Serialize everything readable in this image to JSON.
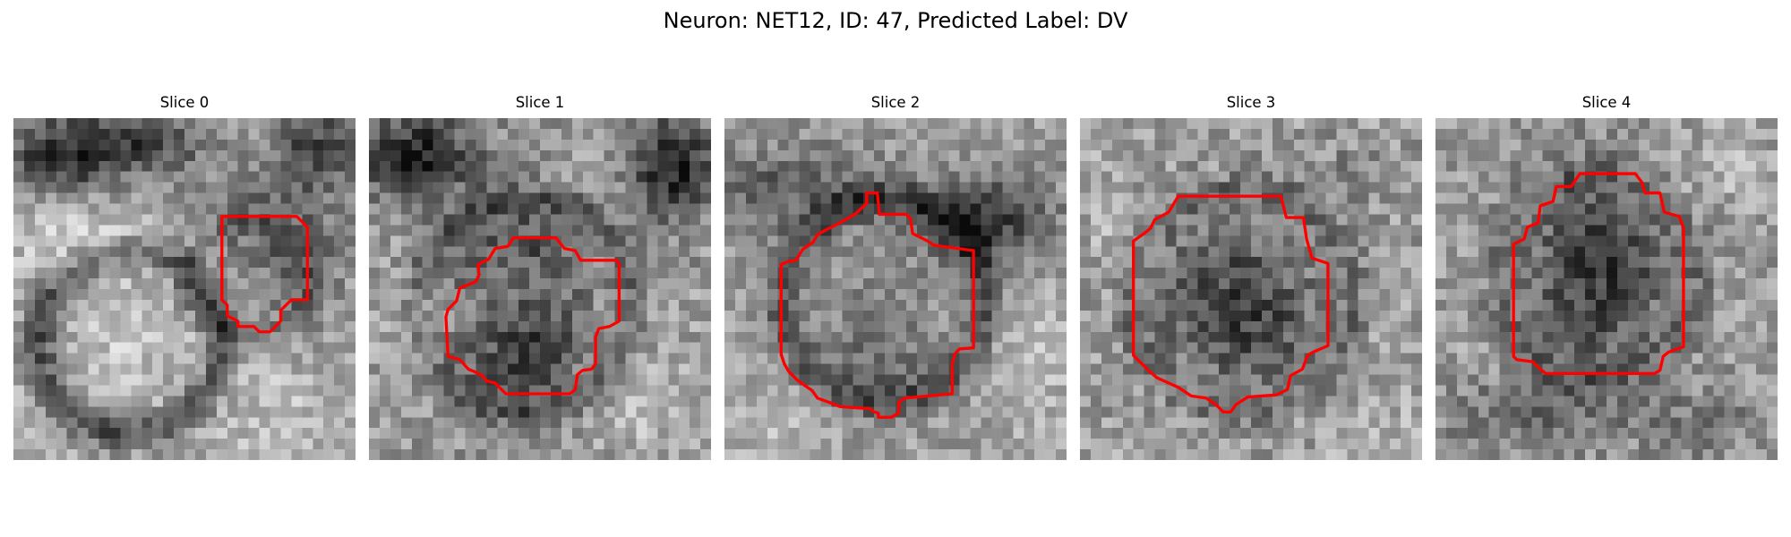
{
  "figure": {
    "title": "Neuron: NET12, ID: 47, Predicted Label: DV",
    "contour_color": "#ff0000",
    "colormap": "grayscale",
    "grid_size": 32
  },
  "slices": [
    {
      "title": "Slice 0"
    },
    {
      "title": "Slice 1"
    },
    {
      "title": "Slice 2"
    },
    {
      "title": "Slice 3"
    },
    {
      "title": "Slice 4"
    }
  ]
}
